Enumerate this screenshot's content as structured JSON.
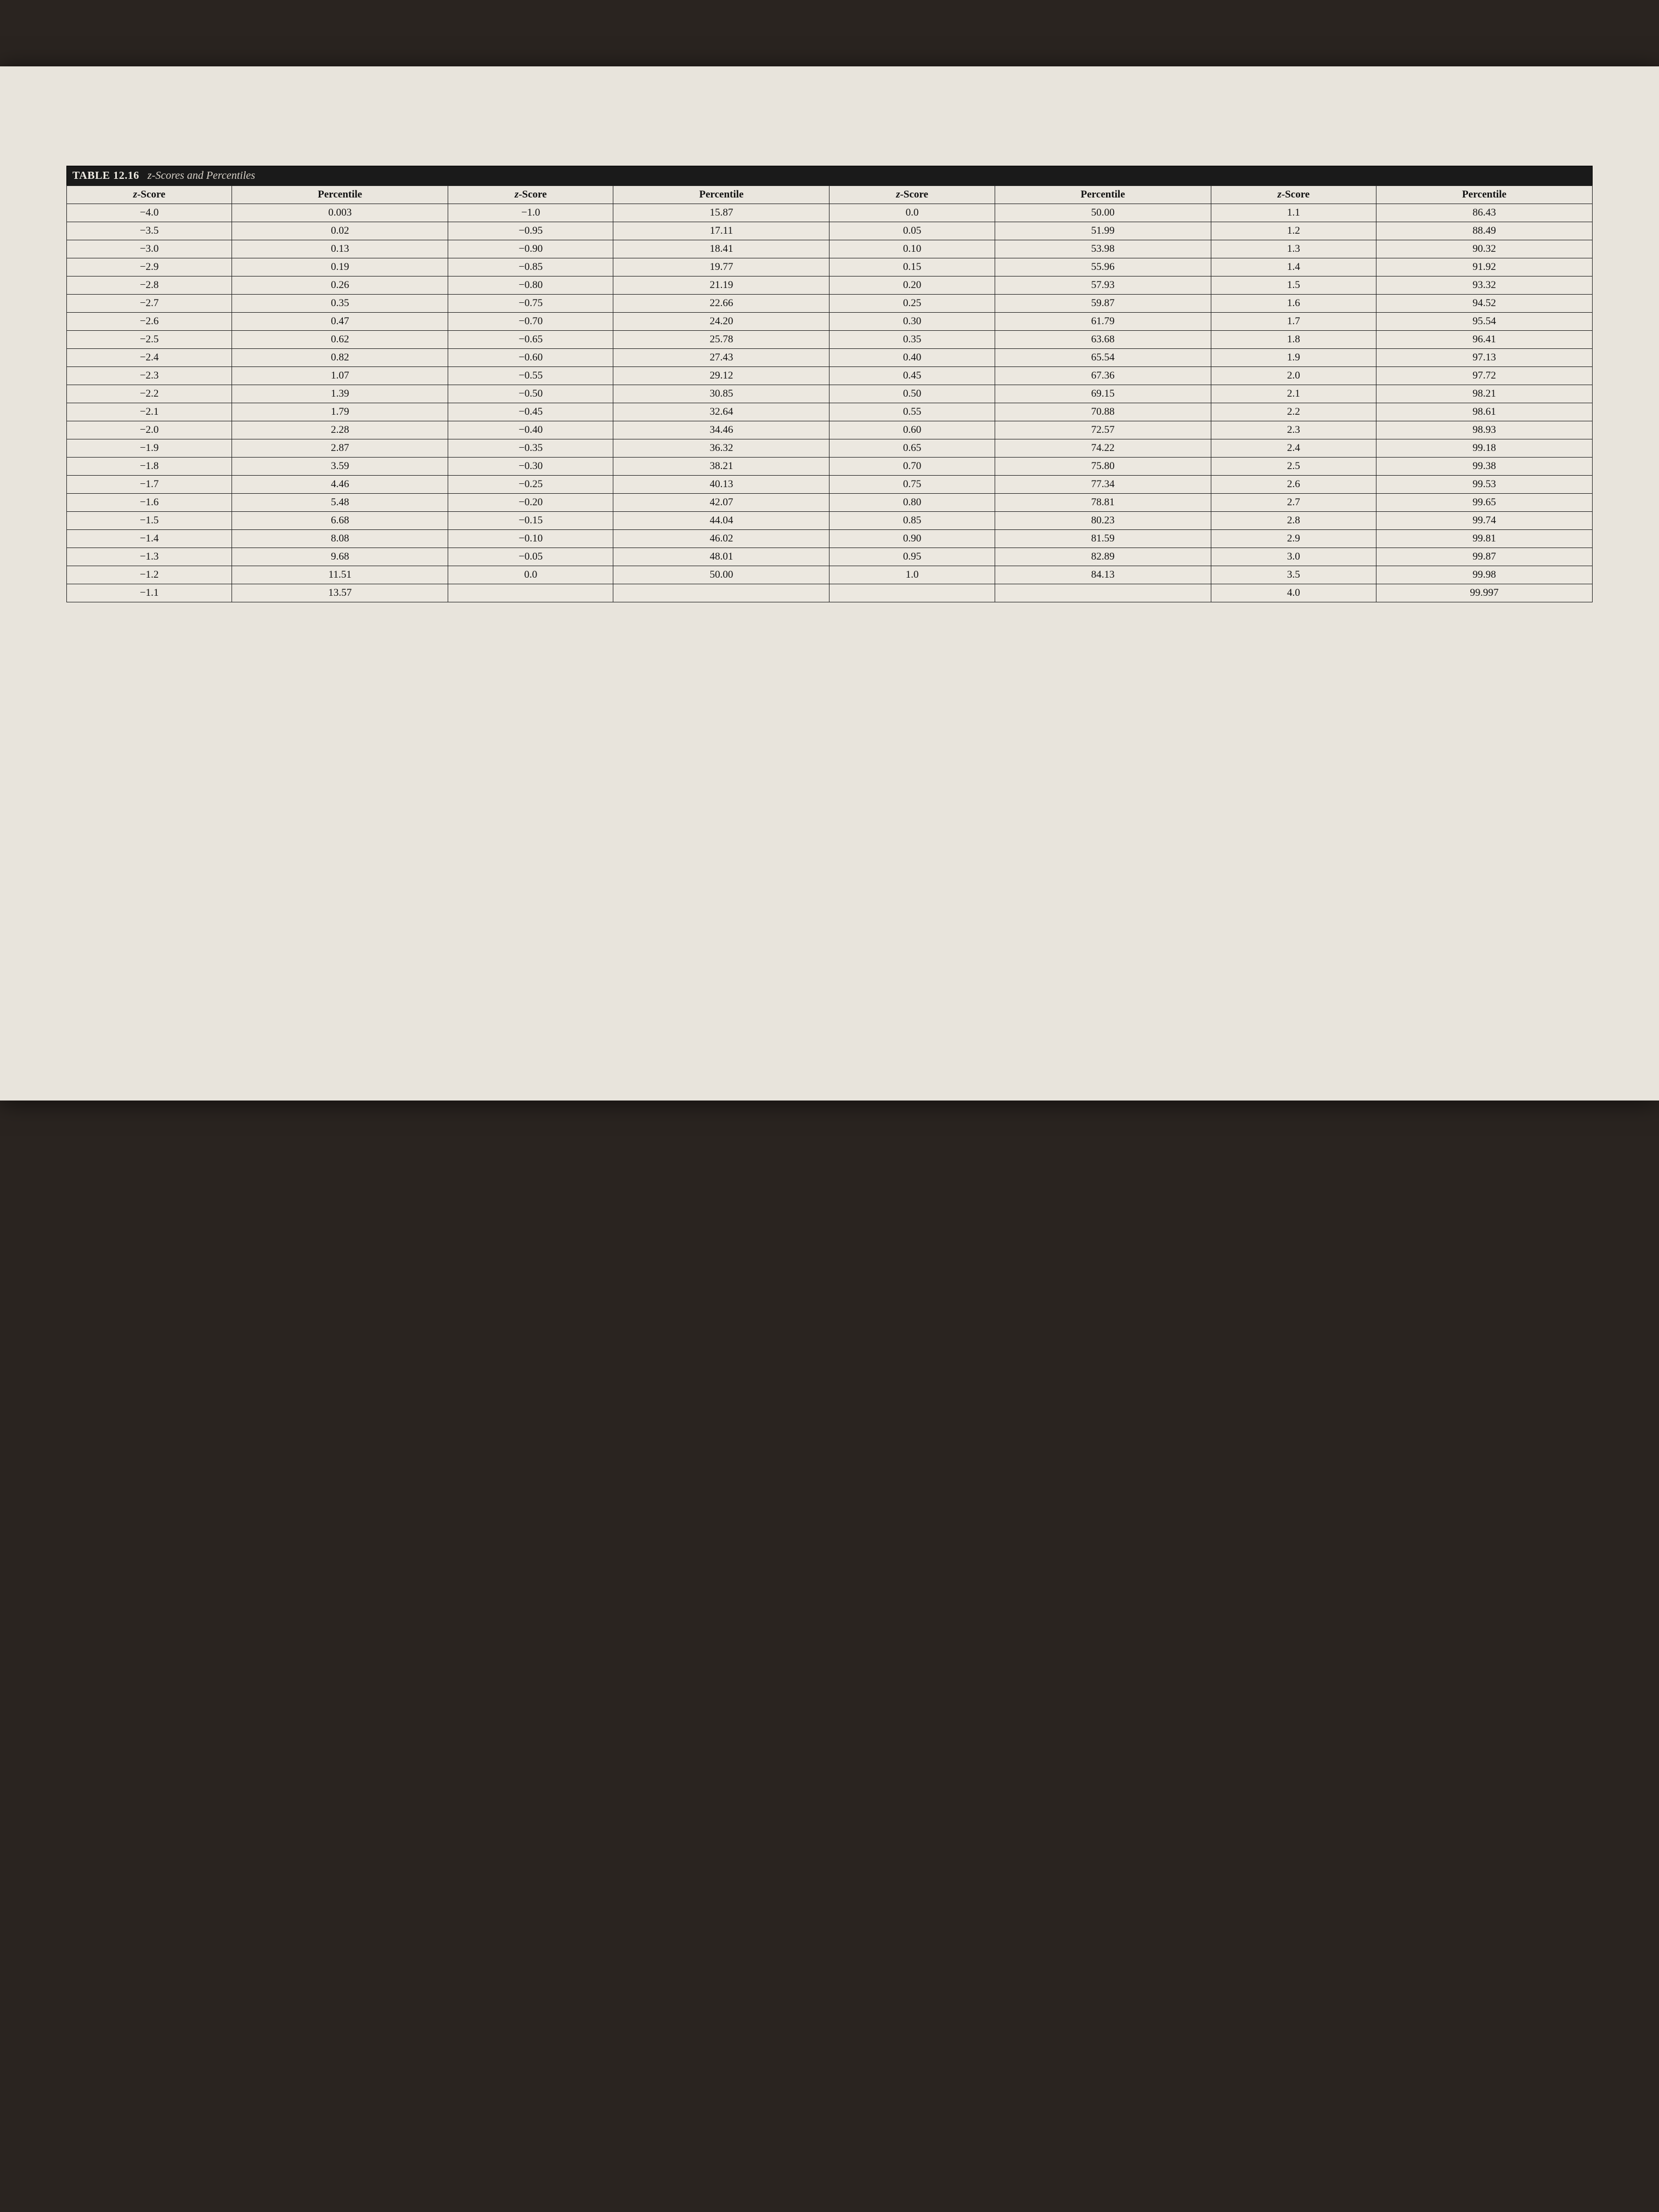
{
  "title": {
    "number": "TABLE 12.16",
    "desc_prefix": "z",
    "desc_rest": "-Scores and Percentiles"
  },
  "headers": {
    "z": "z",
    "score_suffix": "-Score",
    "percentile": "Percentile"
  },
  "table": {
    "type": "table",
    "background_color": "#ece8e0",
    "border_color": "#222222",
    "text_color": "#111111",
    "header_fontweight": "bold",
    "cell_fontsize_pt": 14,
    "column_pairs": 4,
    "columns": [
      "z-Score",
      "Percentile",
      "z-Score",
      "Percentile",
      "z-Score",
      "Percentile",
      "z-Score",
      "Percentile"
    ],
    "rows": [
      [
        "−4.0",
        "0.003",
        "−1.0",
        "15.87",
        "0.0",
        "50.00",
        "1.1",
        "86.43"
      ],
      [
        "−3.5",
        "0.02",
        "−0.95",
        "17.11",
        "0.05",
        "51.99",
        "1.2",
        "88.49"
      ],
      [
        "−3.0",
        "0.13",
        "−0.90",
        "18.41",
        "0.10",
        "53.98",
        "1.3",
        "90.32"
      ],
      [
        "−2.9",
        "0.19",
        "−0.85",
        "19.77",
        "0.15",
        "55.96",
        "1.4",
        "91.92"
      ],
      [
        "−2.8",
        "0.26",
        "−0.80",
        "21.19",
        "0.20",
        "57.93",
        "1.5",
        "93.32"
      ],
      [
        "−2.7",
        "0.35",
        "−0.75",
        "22.66",
        "0.25",
        "59.87",
        "1.6",
        "94.52"
      ],
      [
        "−2.6",
        "0.47",
        "−0.70",
        "24.20",
        "0.30",
        "61.79",
        "1.7",
        "95.54"
      ],
      [
        "−2.5",
        "0.62",
        "−0.65",
        "25.78",
        "0.35",
        "63.68",
        "1.8",
        "96.41"
      ],
      [
        "−2.4",
        "0.82",
        "−0.60",
        "27.43",
        "0.40",
        "65.54",
        "1.9",
        "97.13"
      ],
      [
        "−2.3",
        "1.07",
        "−0.55",
        "29.12",
        "0.45",
        "67.36",
        "2.0",
        "97.72"
      ],
      [
        "−2.2",
        "1.39",
        "−0.50",
        "30.85",
        "0.50",
        "69.15",
        "2.1",
        "98.21"
      ],
      [
        "−2.1",
        "1.79",
        "−0.45",
        "32.64",
        "0.55",
        "70.88",
        "2.2",
        "98.61"
      ],
      [
        "−2.0",
        "2.28",
        "−0.40",
        "34.46",
        "0.60",
        "72.57",
        "2.3",
        "98.93"
      ],
      [
        "−1.9",
        "2.87",
        "−0.35",
        "36.32",
        "0.65",
        "74.22",
        "2.4",
        "99.18"
      ],
      [
        "−1.8",
        "3.59",
        "−0.30",
        "38.21",
        "0.70",
        "75.80",
        "2.5",
        "99.38"
      ],
      [
        "−1.7",
        "4.46",
        "−0.25",
        "40.13",
        "0.75",
        "77.34",
        "2.6",
        "99.53"
      ],
      [
        "−1.6",
        "5.48",
        "−0.20",
        "42.07",
        "0.80",
        "78.81",
        "2.7",
        "99.65"
      ],
      [
        "−1.5",
        "6.68",
        "−0.15",
        "44.04",
        "0.85",
        "80.23",
        "2.8",
        "99.74"
      ],
      [
        "−1.4",
        "8.08",
        "−0.10",
        "46.02",
        "0.90",
        "81.59",
        "2.9",
        "99.81"
      ],
      [
        "−1.3",
        "9.68",
        "−0.05",
        "48.01",
        "0.95",
        "82.89",
        "3.0",
        "99.87"
      ],
      [
        "−1.2",
        "11.51",
        "0.0",
        "50.00",
        "1.0",
        "84.13",
        "3.5",
        "99.98"
      ],
      [
        "−1.1",
        "13.57",
        "",
        "",
        "",
        "",
        "4.0",
        "99.997"
      ]
    ]
  },
  "page_style": {
    "paper_color": "#e8e4dc",
    "outer_background": "#2a2420",
    "title_bar_bg": "#1a1a1a",
    "title_bar_text": "#f0ece4"
  }
}
